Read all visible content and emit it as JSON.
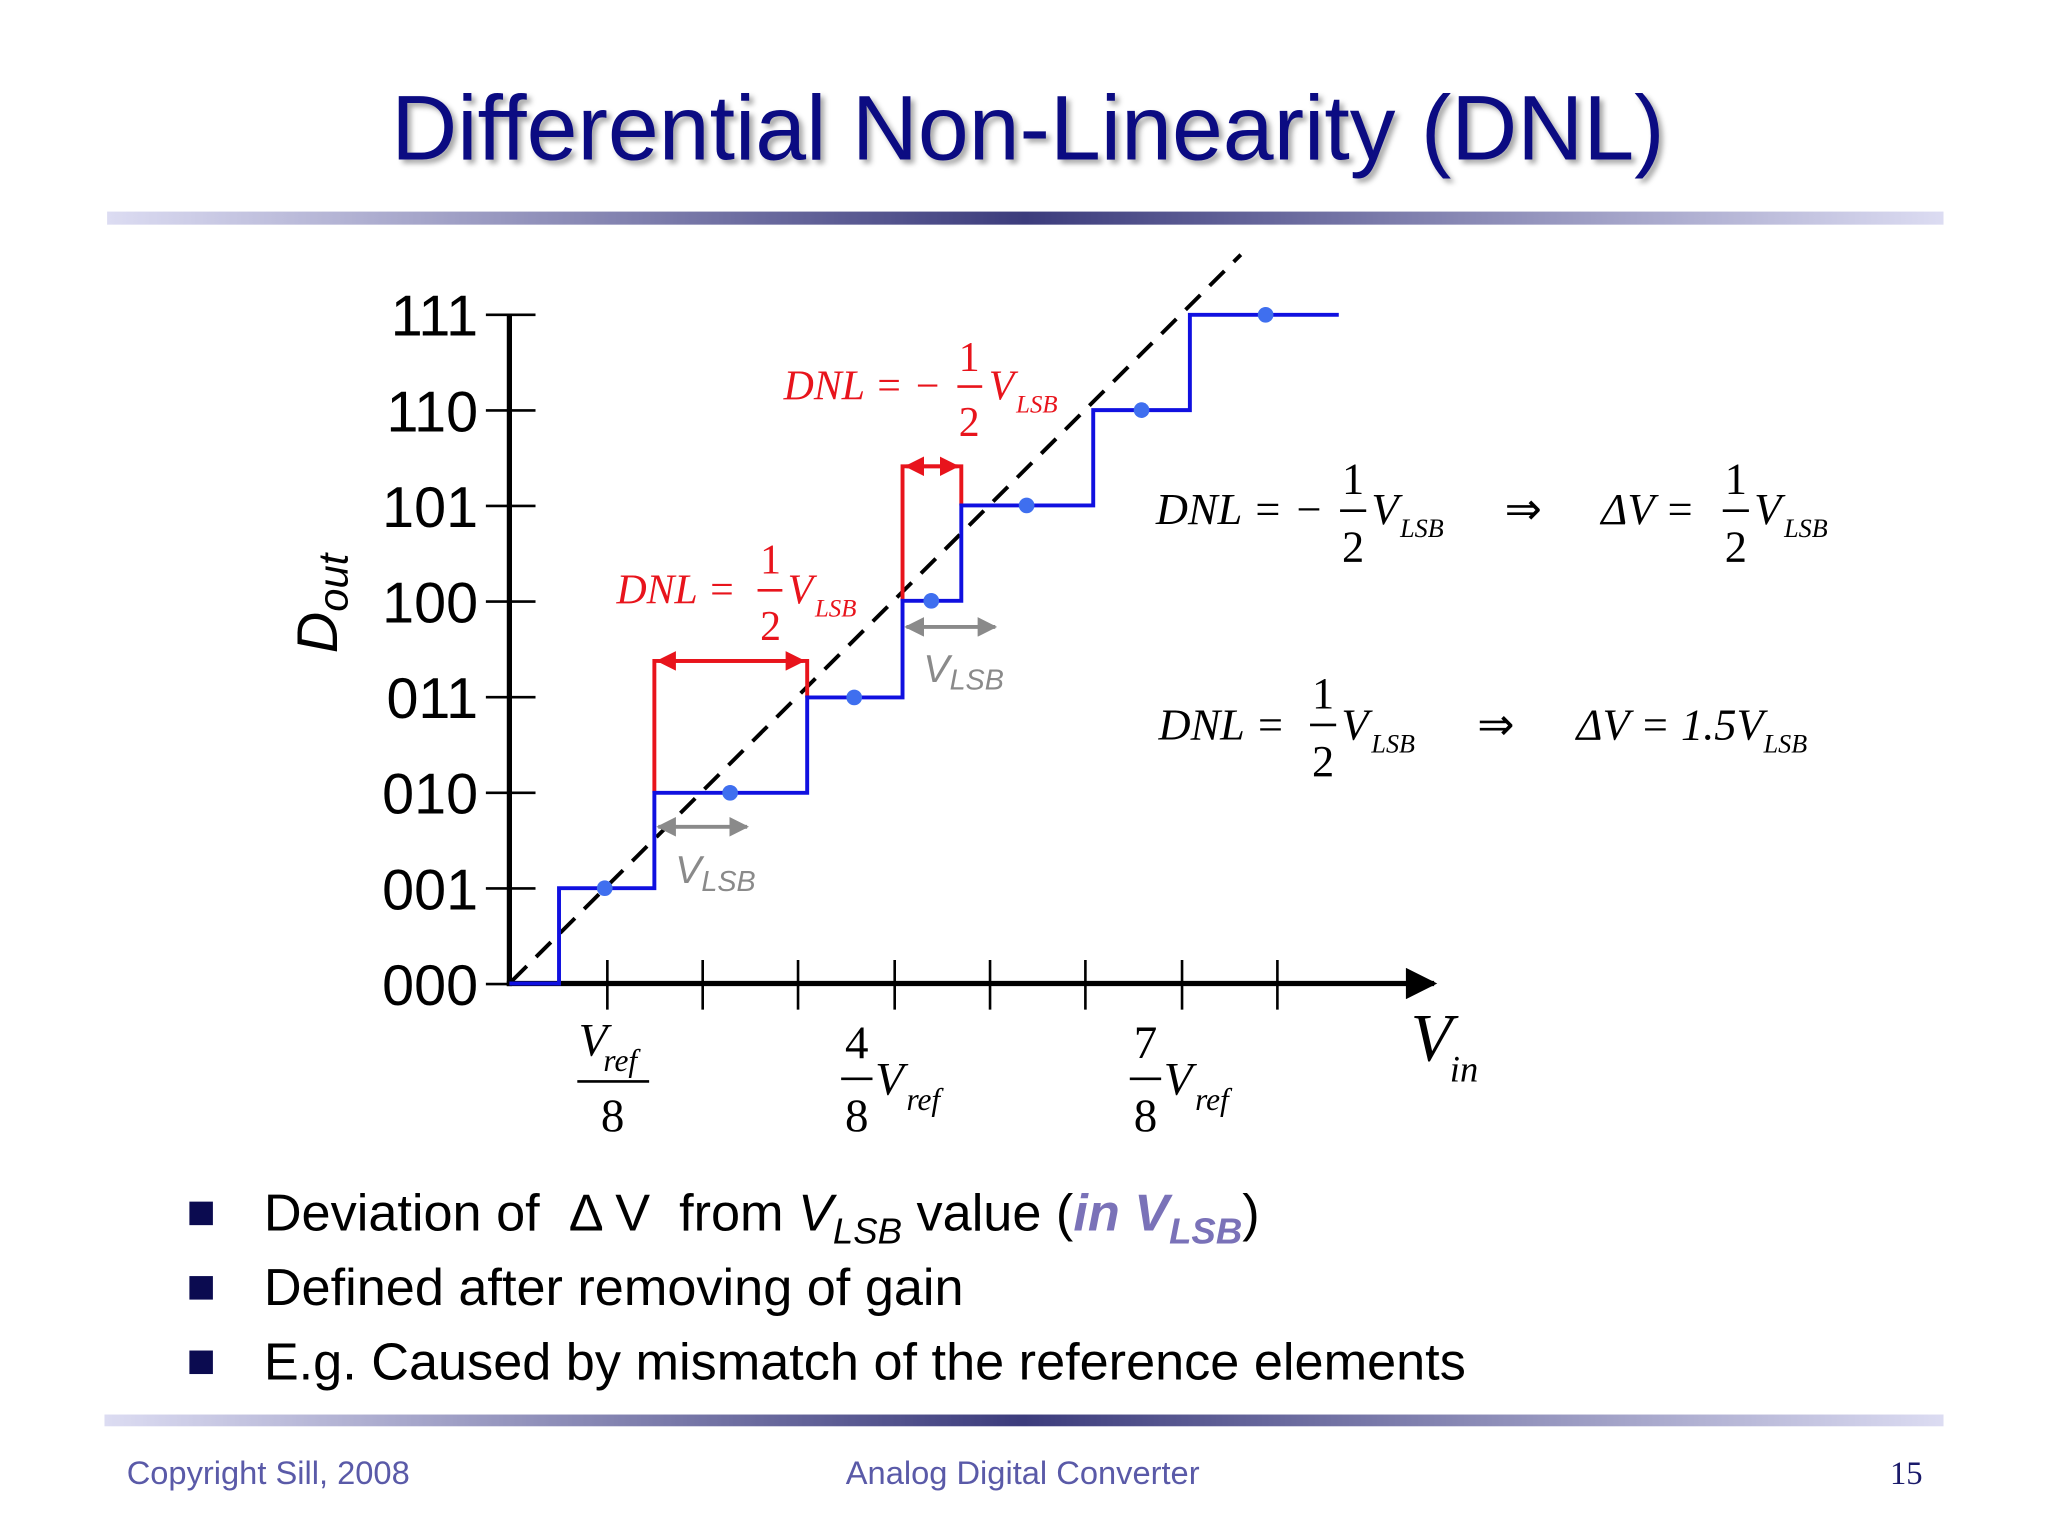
{
  "title": "Differential Non-Linearity (DNL)",
  "y_axis": {
    "label": "D",
    "label_sub": "out",
    "ticks": [
      "111",
      "110",
      "101",
      "100",
      "011",
      "010",
      "001",
      "000"
    ]
  },
  "x_axis": {
    "label": "V",
    "label_sub": "in",
    "ticks": [
      {
        "num": "V",
        "num_sub": "ref",
        "den": "8"
      },
      {
        "num": "4",
        "den": "8",
        "var": "V",
        "var_sub": "ref"
      },
      {
        "num": "7",
        "den": "8",
        "var": "V",
        "var_sub": "ref"
      }
    ]
  },
  "annotations": {
    "dnl_negative": {
      "lhs": "DNL = −",
      "num": "1",
      "den": "2",
      "var": "V",
      "sub": "LSB"
    },
    "dnl_positive": {
      "lhs": "DNL = ",
      "num": "1",
      "den": "2",
      "var": "V",
      "sub": "LSB"
    },
    "vlsb": [
      {
        "var": "V",
        "sub": "LSB"
      },
      {
        "var": "V",
        "sub": "LSB"
      }
    ],
    "equations": [
      {
        "lhs": "DNL = −",
        "num": "1",
        "den": "2",
        "var": "V",
        "sub": "LSB",
        "implies": "⇒",
        "rhs": "ΔV = ",
        "rhs_num": "1",
        "rhs_den": "2",
        "rhs_var": "V",
        "rhs_sub": "LSB"
      },
      {
        "lhs": "DNL = ",
        "num": "1",
        "den": "2",
        "var": "V",
        "sub": "LSB",
        "implies": "⇒",
        "rhs": "ΔV = 1.5",
        "rhs_var": "V",
        "rhs_sub": "LSB"
      }
    ]
  },
  "bullets": [
    [
      "Deviation of  Δ V  from ",
      "V",
      "LSB",
      " value (",
      "in V",
      "LSB",
      ")"
    ],
    [
      "Defined after removing of gain"
    ],
    [
      "E.g. Caused by mismatch of the reference elements"
    ]
  ],
  "footer": {
    "left": "Copyright Sill, 2008",
    "center": "Analog Digital Converter",
    "page": "15"
  }
}
